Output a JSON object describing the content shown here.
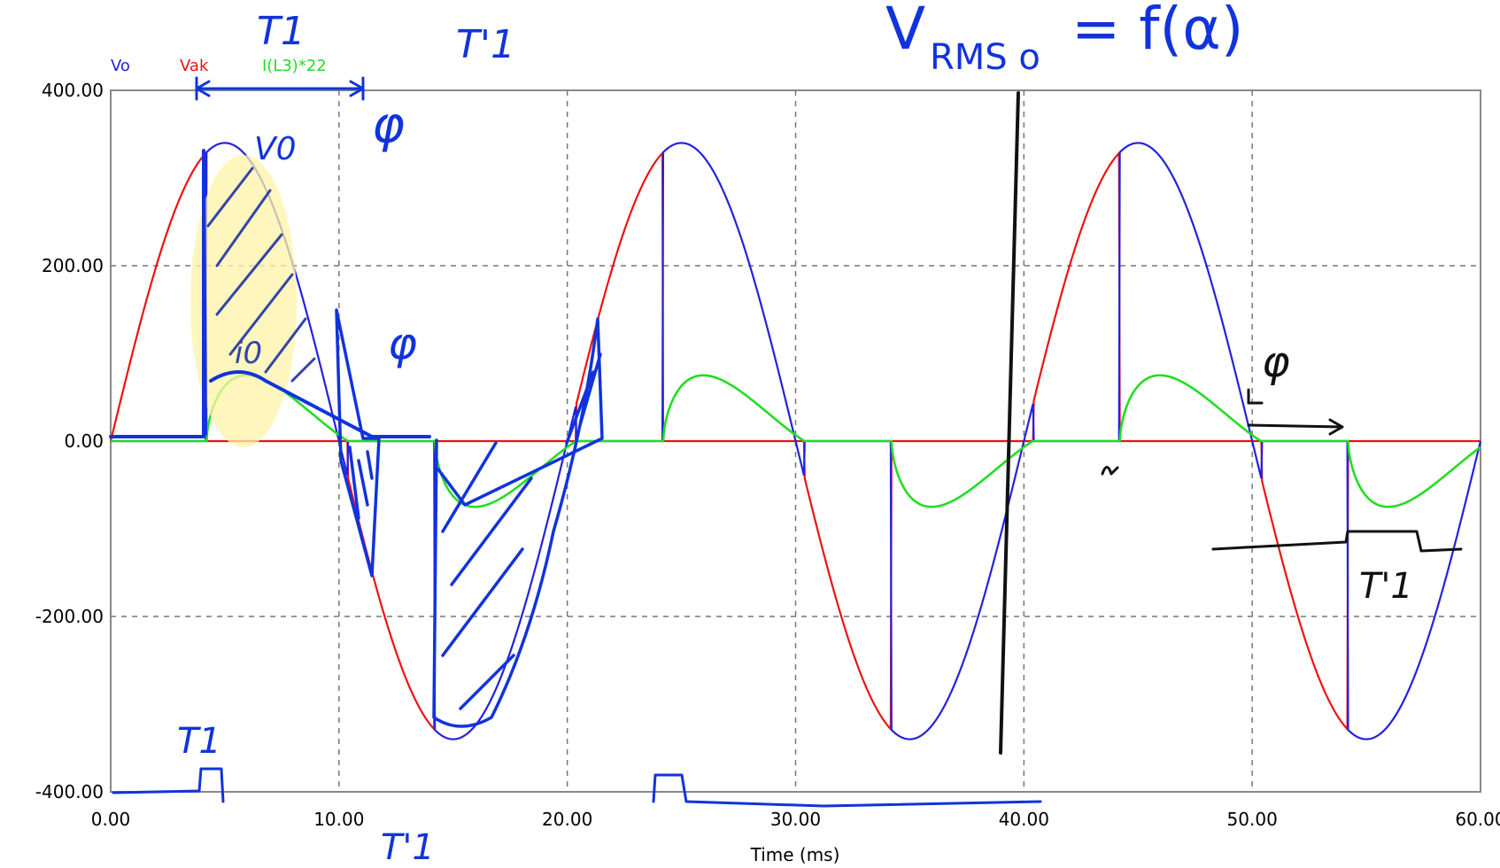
{
  "chart_data": {
    "type": "line",
    "xlabel": "Time (ms)",
    "xlim": [
      0,
      60
    ],
    "ylim": [
      -400,
      400
    ],
    "x_ticks": [
      "0.00",
      "10.00",
      "20.00",
      "30.00",
      "40.00",
      "50.00",
      "60.00"
    ],
    "y_ticks": [
      "400.00",
      "200.00",
      "0.00",
      "-200.00",
      "-400.00"
    ],
    "grid": true,
    "legend_position": "top-left",
    "amplitude": 340,
    "period_ms": 20,
    "series": [
      {
        "name": "Vo",
        "color": "#2222dd"
      },
      {
        "name": "Vak",
        "color": "#ee1111"
      },
      {
        "name": "I(L3)*22",
        "color": "#22dd22"
      }
    ],
    "firing_times_ms": [
      4.2,
      14.2,
      24.2,
      34.2,
      44.2,
      54.2
    ],
    "current_peak": 75,
    "handwritten_annotations": {
      "formula": "V_RMS o = f(α)",
      "labels": [
        "T1",
        "T'1",
        "T1",
        "T'1",
        "T'1",
        "V0",
        "i0",
        "φ",
        "φ",
        "φ",
        "α"
      ]
    }
  }
}
